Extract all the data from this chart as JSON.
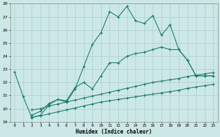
{
  "xlabel": "Humidex (Indice chaleur)",
  "bg_color": "#cce8e6",
  "line_color": "#1a7a6e",
  "grid_color": "#aacccc",
  "xlim": [
    -0.5,
    23.5
  ],
  "ylim": [
    19,
    28
  ],
  "xticks": [
    0,
    1,
    2,
    3,
    4,
    5,
    6,
    7,
    8,
    9,
    10,
    11,
    12,
    13,
    14,
    15,
    16,
    17,
    18,
    19,
    20,
    21,
    22,
    23
  ],
  "yticks": [
    19,
    20,
    21,
    22,
    23,
    24,
    25,
    26,
    27,
    28
  ],
  "line1_x": [
    0,
    1,
    2,
    3,
    4,
    5,
    6,
    7,
    8,
    9,
    10,
    11,
    12,
    13,
    14,
    15,
    16,
    17,
    18,
    19,
    20,
    21,
    22,
    23
  ],
  "line1_y": [
    22.8,
    20.9,
    19.3,
    19.5,
    20.3,
    20.7,
    20.5,
    21.5,
    23.2,
    24.9,
    25.8,
    27.4,
    27.0,
    27.8,
    26.7,
    26.5,
    27.1,
    25.6,
    26.4,
    24.5,
    23.7,
    22.5,
    22.5,
    22.5
  ],
  "line2_x": [
    2,
    3,
    4,
    5,
    6,
    7,
    8,
    9,
    10,
    11,
    12,
    13,
    14,
    15,
    16,
    17,
    18,
    19,
    20,
    21,
    22,
    23
  ],
  "line2_y": [
    19.5,
    19.8,
    20.4,
    20.7,
    20.6,
    21.6,
    22.0,
    21.5,
    22.5,
    23.5,
    23.5,
    24.0,
    24.2,
    24.3,
    24.5,
    24.7,
    24.5,
    24.5,
    23.7,
    22.5,
    22.5,
    22.5
  ],
  "line3_x": [
    2,
    3,
    4,
    5,
    6,
    7,
    8,
    9,
    10,
    11,
    12,
    13,
    14,
    15,
    16,
    17,
    18,
    19,
    20,
    21,
    22,
    23
  ],
  "line3_y": [
    19.9,
    20.0,
    20.2,
    20.35,
    20.5,
    20.65,
    20.8,
    20.95,
    21.1,
    21.25,
    21.4,
    21.55,
    21.7,
    21.85,
    22.0,
    22.1,
    22.2,
    22.3,
    22.45,
    22.55,
    22.65,
    22.75
  ],
  "line4_x": [
    2,
    3,
    4,
    5,
    6,
    7,
    8,
    9,
    10,
    11,
    12,
    13,
    14,
    15,
    16,
    17,
    18,
    19,
    20,
    21,
    22,
    23
  ],
  "line4_y": [
    19.35,
    19.45,
    19.6,
    19.75,
    19.9,
    20.05,
    20.2,
    20.35,
    20.5,
    20.6,
    20.7,
    20.8,
    20.9,
    21.0,
    21.1,
    21.2,
    21.3,
    21.4,
    21.55,
    21.65,
    21.75,
    21.85
  ],
  "markersize": 2.5,
  "linewidth": 0.8
}
